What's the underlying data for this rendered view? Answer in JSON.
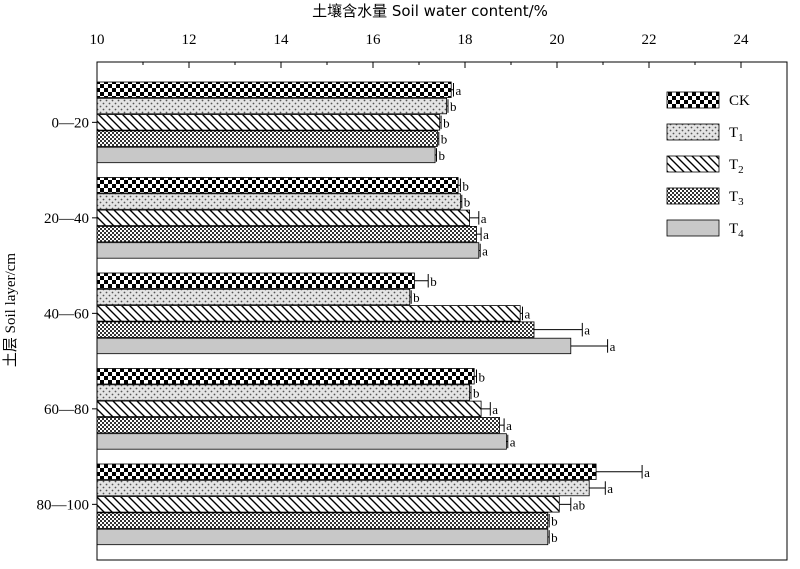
{
  "chart_data": {
    "type": "bar",
    "orientation": "horizontal",
    "title": "土壤含水量 Soil water content/%",
    "xlabel": "土壤含水量 Soil water content/%",
    "ylabel": "土层 Soil layer/cm",
    "xlim": [
      10,
      25
    ],
    "xticks": [
      "10",
      "12",
      "14",
      "16",
      "18",
      "20",
      "22",
      "24"
    ],
    "categories": [
      "0—20",
      "20—40",
      "40—60",
      "60—80",
      "80—100"
    ],
    "legend_position": "top-right",
    "grid": false,
    "series": [
      {
        "name": "CK",
        "sub": "",
        "pattern": "checker",
        "values": [
          17.7,
          17.85,
          16.9,
          18.2,
          20.85
        ],
        "errors": [
          0.05,
          0.05,
          0.3,
          0.05,
          1.0
        ],
        "labels": [
          "a",
          "b",
          "b",
          "b",
          "a"
        ]
      },
      {
        "name": "T",
        "sub": "1",
        "pattern": "dots",
        "values": [
          17.6,
          17.9,
          16.8,
          18.1,
          20.7
        ],
        "errors": [
          0.03,
          0.03,
          0.03,
          0.03,
          0.35
        ],
        "labels": [
          "b",
          "b",
          "b",
          "b",
          "a"
        ]
      },
      {
        "name": "T",
        "sub": "2",
        "pattern": "diagonal",
        "values": [
          17.45,
          18.1,
          19.2,
          18.35,
          20.05
        ],
        "errors": [
          0.03,
          0.2,
          0.05,
          0.2,
          0.25
        ],
        "labels": [
          "b",
          "a",
          "a",
          "a",
          "ab"
        ]
      },
      {
        "name": "T",
        "sub": "3",
        "pattern": "grid",
        "values": [
          17.4,
          18.25,
          19.5,
          18.75,
          19.8
        ],
        "errors": [
          0.03,
          0.1,
          1.05,
          0.1,
          0.03
        ],
        "labels": [
          "b",
          "a",
          "a",
          "a",
          "b"
        ]
      },
      {
        "name": "T",
        "sub": "4",
        "pattern": "solid",
        "values": [
          17.35,
          18.3,
          20.3,
          18.9,
          19.8
        ],
        "errors": [
          0.03,
          0.03,
          0.8,
          0.03,
          0.03
        ],
        "labels": [
          "b",
          "a",
          "a",
          "a",
          "b"
        ]
      }
    ]
  }
}
